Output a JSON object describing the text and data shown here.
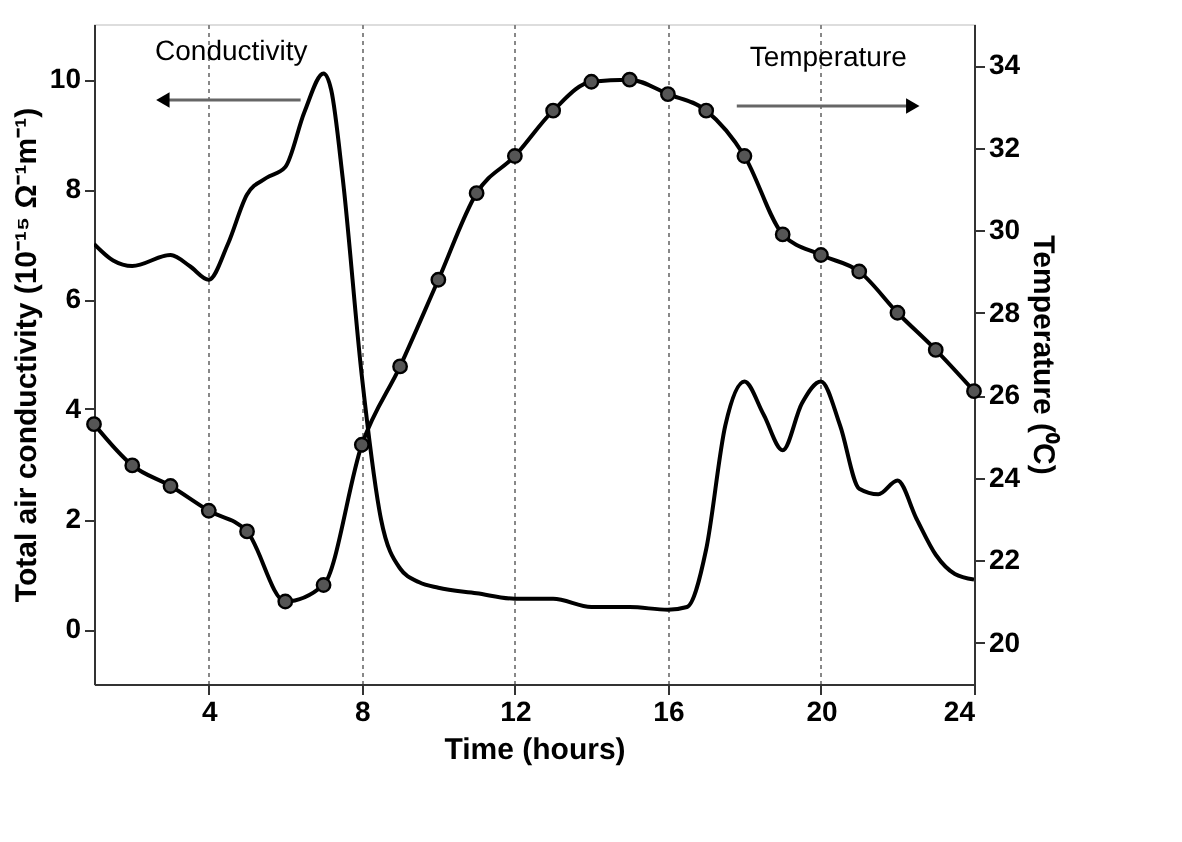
{
  "chart_data": {
    "type": "line",
    "xlabel": "Time (hours)",
    "ylabel": "Total air conductivity  (10⁻¹⁵ Ω⁻¹m⁻¹)",
    "y2label": "Temperature (⁰C)",
    "xlim": [
      1,
      24
    ],
    "xticks": [
      4,
      8,
      12,
      16,
      20,
      24
    ],
    "ylim": [
      -1,
      11
    ],
    "yticks": [
      0,
      2,
      4,
      6,
      8,
      10
    ],
    "y2lim": [
      19,
      35
    ],
    "y2ticks": [
      20,
      22,
      24,
      26,
      28,
      30,
      32,
      34
    ],
    "grid": "x",
    "line_style": "solid",
    "series": [
      {
        "name": "Conductivity",
        "color": "#000000",
        "marker": "none",
        "x": [
          1,
          1.5,
          2,
          3,
          3.5,
          4,
          4.5,
          5,
          5.5,
          6,
          6.5,
          7,
          7.2,
          7.5,
          8,
          8.5,
          9,
          9.5,
          10,
          11,
          12,
          13,
          14,
          15,
          16,
          16.5,
          17,
          17.5,
          18,
          18.5,
          19,
          19.5,
          20,
          20.5,
          21,
          21.5,
          22,
          22.5,
          23,
          23.5,
          24
        ],
        "values": [
          7.0,
          6.7,
          6.6,
          6.8,
          6.6,
          6.35,
          7.0,
          7.9,
          8.2,
          8.4,
          9.4,
          10.1,
          9.8,
          8.2,
          4.6,
          2.0,
          1.1,
          0.85,
          0.75,
          0.65,
          0.55,
          0.55,
          0.4,
          0.4,
          0.35,
          0.4,
          1.45,
          3.7,
          4.5,
          3.9,
          3.25,
          4.1,
          4.5,
          3.7,
          2.55,
          2.45,
          2.7,
          2.0,
          1.35,
          1.0,
          0.9
        ]
      },
      {
        "name": "Temperature",
        "color": "#000000",
        "marker": "circle",
        "axis": "y2",
        "x": [
          1,
          2,
          3,
          4,
          5,
          6,
          7,
          8,
          9,
          10,
          11,
          12,
          13,
          14,
          15,
          16,
          17,
          18,
          19,
          20,
          21,
          22,
          23,
          24
        ],
        "values": [
          25.3,
          24.3,
          23.8,
          23.2,
          22.7,
          21.0,
          21.4,
          24.8,
          26.7,
          28.8,
          30.9,
          31.8,
          32.9,
          33.6,
          33.65,
          33.3,
          32.9,
          31.8,
          29.9,
          29.4,
          29.0,
          28.0,
          27.1,
          26.1
        ]
      }
    ]
  }
}
